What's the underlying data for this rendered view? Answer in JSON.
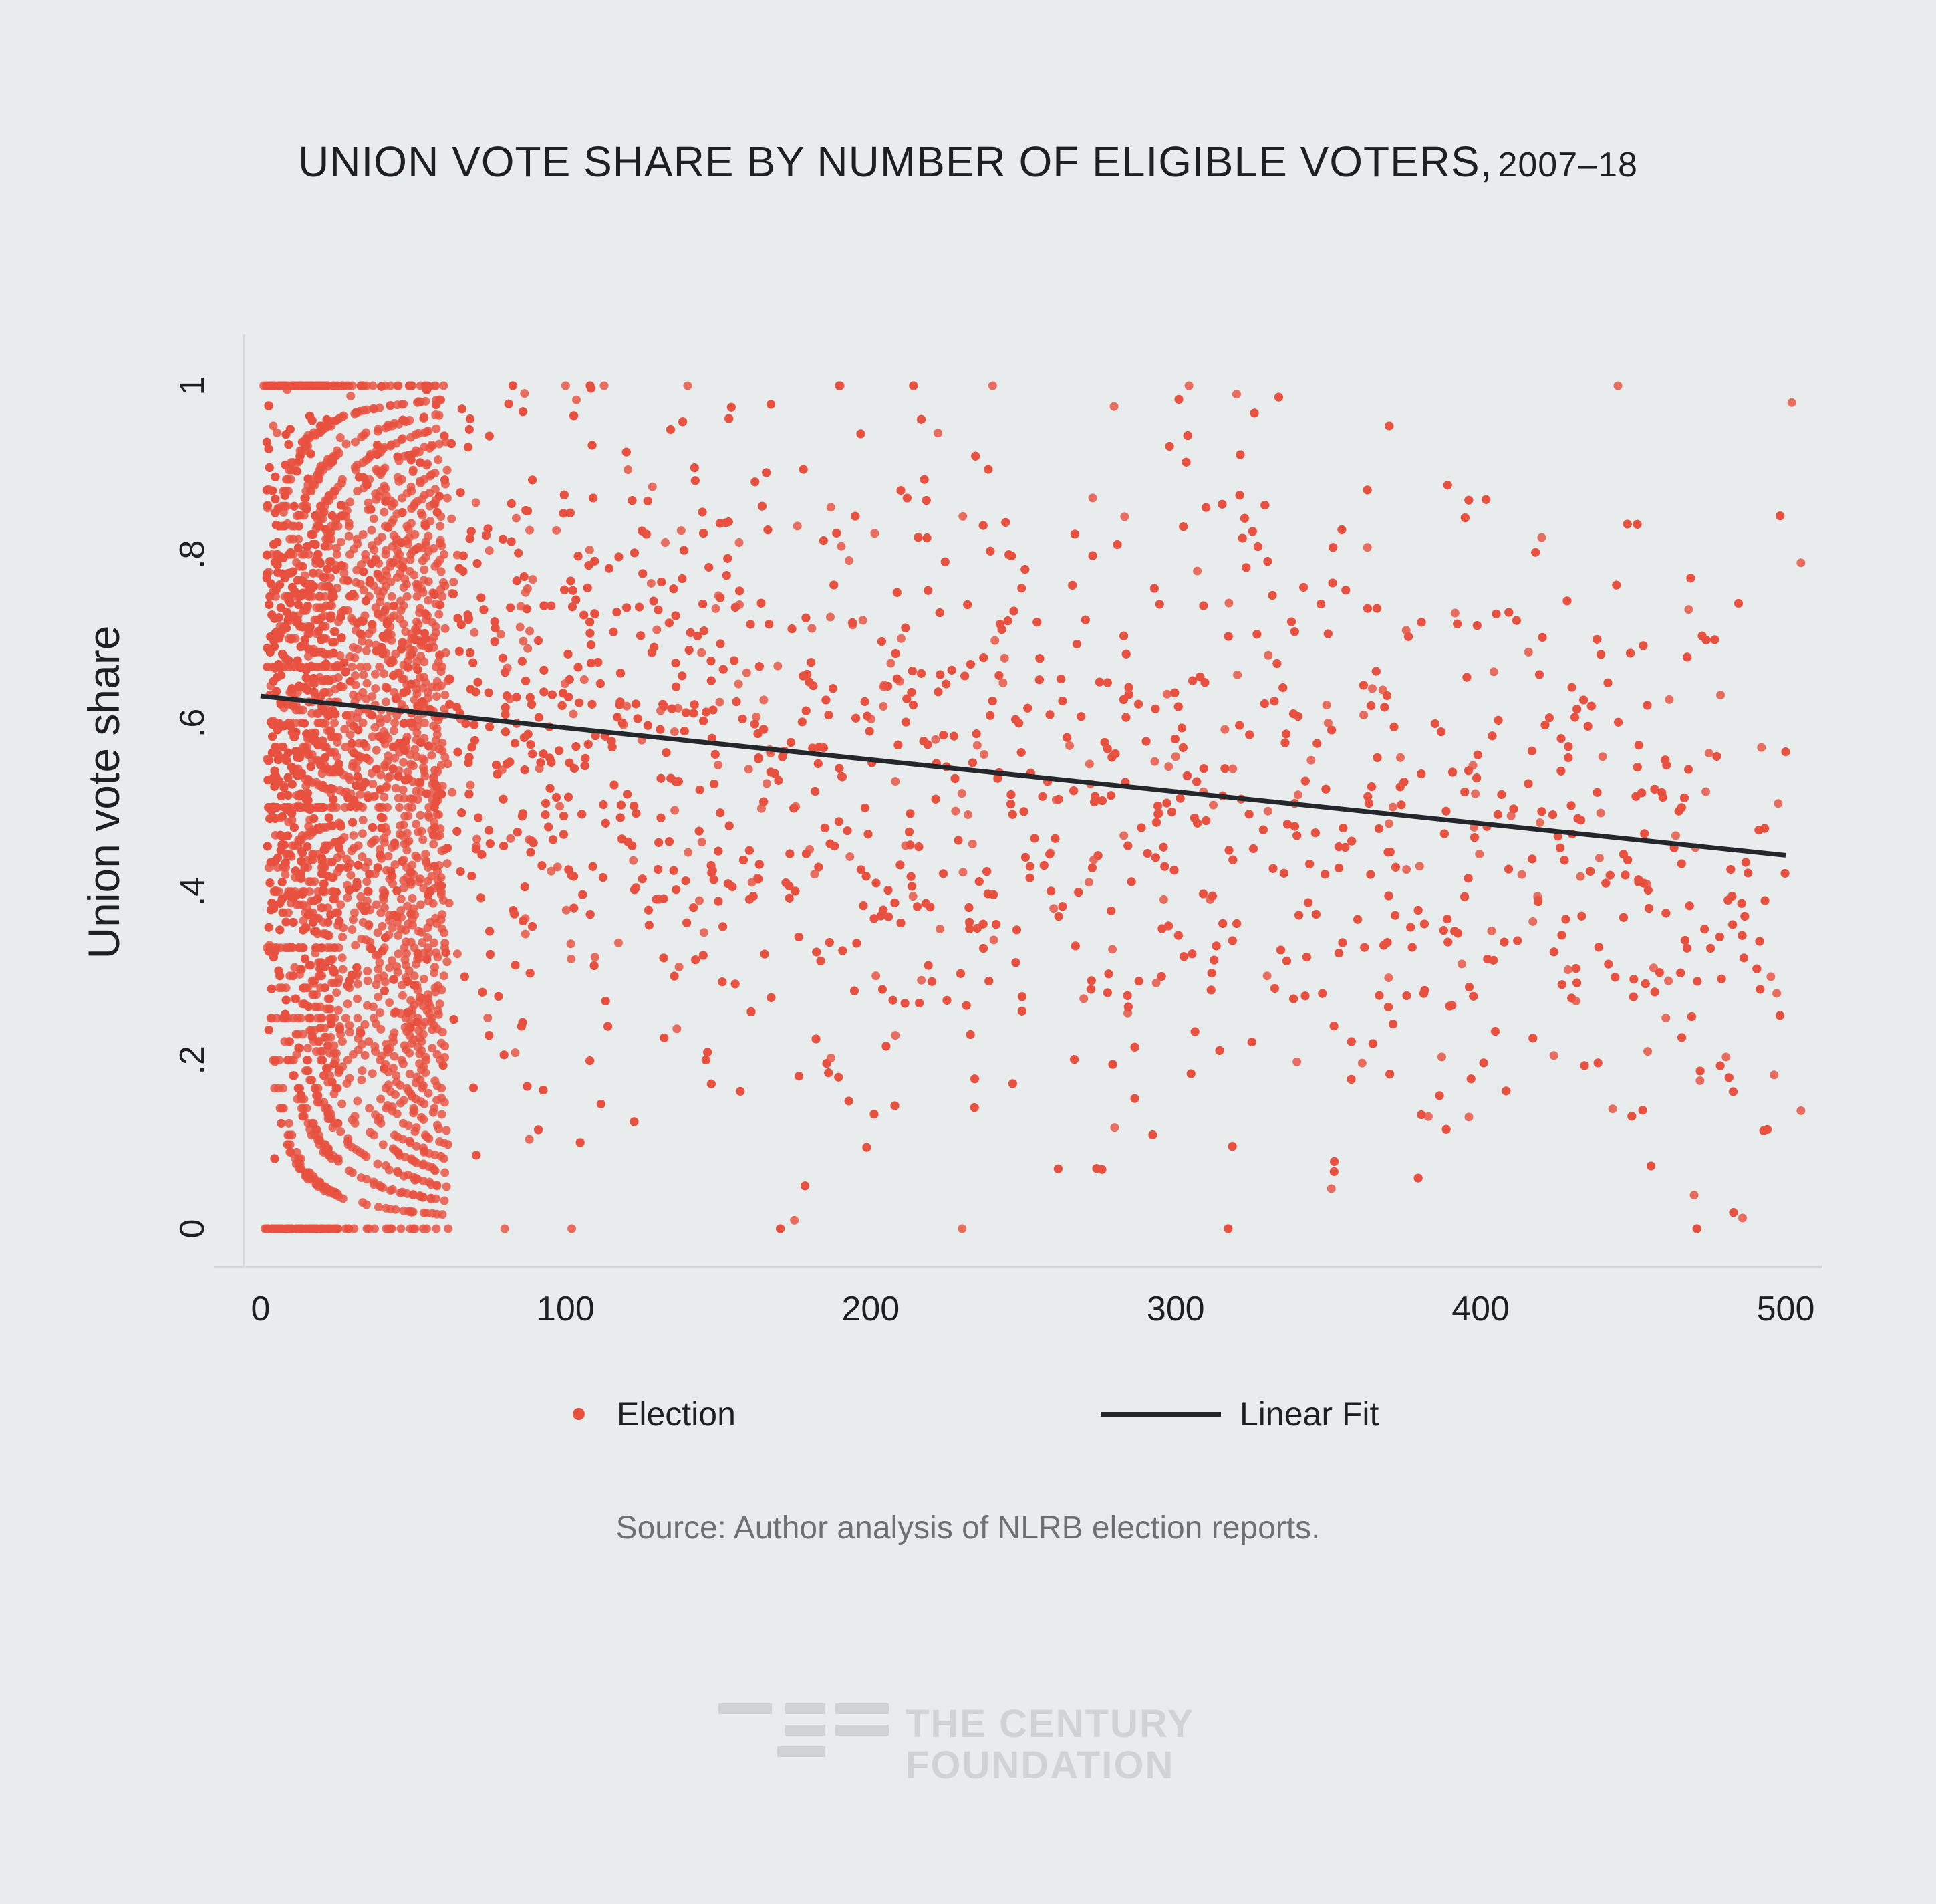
{
  "chart_data": {
    "type": "scatter",
    "title": "UNION VOTE SHARE BY NUMBER OF ELIGIBLE VOTERS,",
    "title_years": "2007–18",
    "xlabel": "",
    "ylabel": "Union vote share",
    "xlim": [
      0,
      500
    ],
    "ylim": [
      0,
      1
    ],
    "x_ticks": [
      0,
      100,
      200,
      300,
      400,
      500
    ],
    "x_tick_labels": [
      "0",
      "100",
      "200",
      "300",
      "400",
      "500"
    ],
    "y_ticks": [
      0,
      0.2,
      0.4,
      0.6,
      0.8,
      1
    ],
    "y_tick_labels": [
      "0",
      ".2",
      ".4",
      ".6",
      ".8",
      "1"
    ],
    "grid": false,
    "legend_position": "bottom",
    "series": [
      {
        "name": "Election",
        "kind": "points",
        "color": "#e8503f",
        "sample_points": [
          [
            2,
            1.0
          ],
          [
            8,
            1.0
          ],
          [
            15,
            1.0
          ],
          [
            30,
            1.0
          ],
          [
            60,
            1.0
          ],
          [
            100,
            1.0
          ],
          [
            140,
            1.0
          ],
          [
            190,
            1.0
          ],
          [
            240,
            1.0
          ],
          [
            320,
            0.99
          ],
          [
            445,
            1.0
          ],
          [
            2,
            0.0
          ],
          [
            10,
            0.0
          ],
          [
            25,
            0.0
          ],
          [
            50,
            0.0
          ],
          [
            80,
            0.0
          ],
          [
            102,
            0.0
          ],
          [
            230,
            0.0
          ],
          [
            3,
            0.5
          ],
          [
            20,
            0.5
          ],
          [
            40,
            0.5
          ],
          [
            5,
            0.667
          ],
          [
            20,
            0.667
          ],
          [
            5,
            0.333
          ],
          [
            20,
            0.333
          ],
          [
            8,
            0.75
          ],
          [
            8,
            0.25
          ],
          [
            10,
            0.8
          ],
          [
            10,
            0.2
          ],
          [
            120,
            0.62
          ],
          [
            150,
            0.55
          ],
          [
            180,
            0.45
          ],
          [
            210,
            0.7
          ],
          [
            260,
            0.38
          ],
          [
            300,
            0.56
          ],
          [
            350,
            0.6
          ],
          [
            380,
            0.43
          ],
          [
            410,
            0.49
          ],
          [
            440,
            0.56
          ],
          [
            470,
            0.04
          ],
          [
            505,
            0.14
          ],
          [
            505,
            0.79
          ],
          [
            502,
            0.98
          ],
          [
            420,
            0.82
          ],
          [
            330,
            0.3
          ],
          [
            280,
            0.12
          ],
          [
            175,
            0.01
          ]
        ]
      },
      {
        "name": "Linear Fit",
        "kind": "line",
        "color": "#23262a",
        "x": [
          0,
          500
        ],
        "y": [
          0.632,
          0.443
        ]
      }
    ]
  },
  "legend": {
    "election": "Election",
    "linear_fit": "Linear Fit"
  },
  "source": "Source: Author analysis of NLRB election reports.",
  "logo": {
    "line1": "THE CENTURY",
    "line2": "FOUNDATION"
  }
}
